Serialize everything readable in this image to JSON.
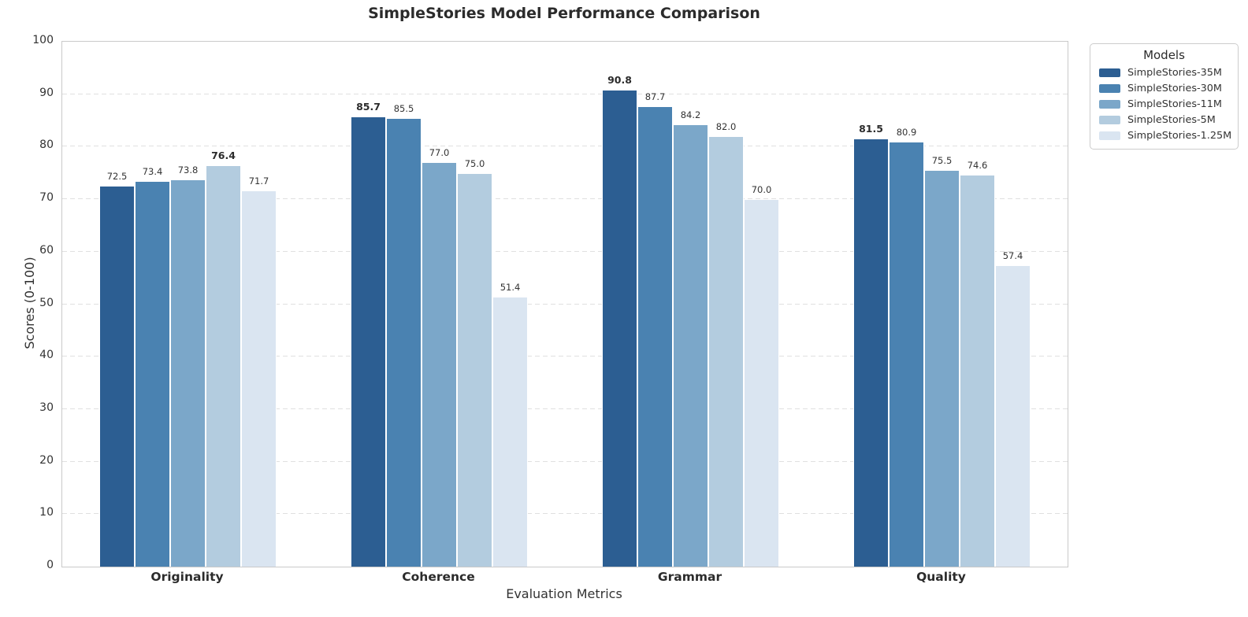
{
  "chart_data": {
    "type": "bar",
    "title": "SimpleStories Model Performance Comparison",
    "xlabel": "Evaluation Metrics",
    "ylabel": "Scores (0-100)",
    "ylim": [
      0,
      100
    ],
    "yticks": [
      0,
      10,
      20,
      30,
      40,
      50,
      60,
      70,
      80,
      90,
      100
    ],
    "grid": "horizontal-dashed",
    "legend_title": "Models",
    "legend_position": "outside-upper-right",
    "value_labels": true,
    "bold_max_per_category": true,
    "categories": [
      "Originality",
      "Coherence",
      "Grammar",
      "Quality"
    ],
    "series": [
      {
        "name": "SimpleStories-35M",
        "color": "#2c5e92",
        "values": [
          72.5,
          85.7,
          90.8,
          81.5
        ]
      },
      {
        "name": "SimpleStories-30M",
        "color": "#4a82b1",
        "values": [
          73.4,
          85.5,
          87.7,
          80.9
        ]
      },
      {
        "name": "SimpleStories-11M",
        "color": "#7ba7c9",
        "values": [
          73.8,
          77.0,
          84.2,
          75.5
        ]
      },
      {
        "name": "SimpleStories-5M",
        "color": "#b3ccdf",
        "values": [
          76.4,
          75.0,
          82.0,
          74.6
        ]
      },
      {
        "name": "SimpleStories-1.25M",
        "color": "#dae5f1",
        "values": [
          71.7,
          51.4,
          70.0,
          57.4
        ]
      }
    ]
  }
}
